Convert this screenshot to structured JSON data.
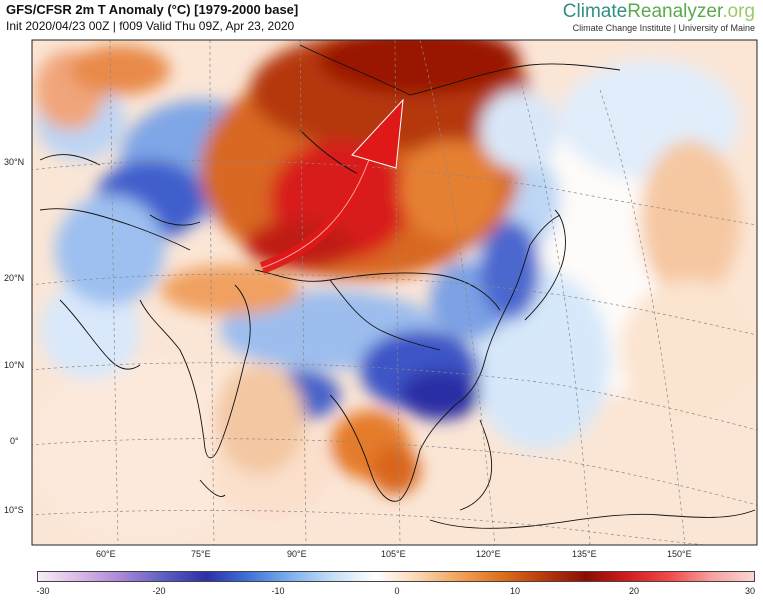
{
  "header": {
    "title": "GFS/CFSR 2m T Anomaly (°C) [1979-2000 base]",
    "subtitle": "Init 2020/04/23 00Z | f009 Valid Thu 09Z, Apr 23, 2020"
  },
  "brand": {
    "part1": "Climate",
    "part2": "Reanalyzer",
    "part3": ".org",
    "affiliation": "Climate Change Institute | University of Maine"
  },
  "map": {
    "lat_labels": [
      "30°N",
      "20°N",
      "10°N",
      "0°",
      "10°S"
    ],
    "lon_labels": [
      "60°E",
      "75°E",
      "90°E",
      "105°E",
      "120°E",
      "135°E",
      "150°E"
    ],
    "arrow_color": "#e01818"
  },
  "colorbar": {
    "ticks": [
      "-30",
      "-20",
      "-10",
      "0",
      "10",
      "20",
      "30"
    ],
    "colors": [
      "#f7eef7",
      "#d9b7e6",
      "#a985d7",
      "#5b5fc2",
      "#2d2fa7",
      "#3f73d8",
      "#7fb0ee",
      "#c6def6",
      "#ffffff",
      "#fbd7b3",
      "#f2a35b",
      "#df6f1c",
      "#b83a0c",
      "#8b0d05",
      "#d21d1d",
      "#f24a4a",
      "#f7a0a0",
      "#fbd5d5"
    ]
  }
}
